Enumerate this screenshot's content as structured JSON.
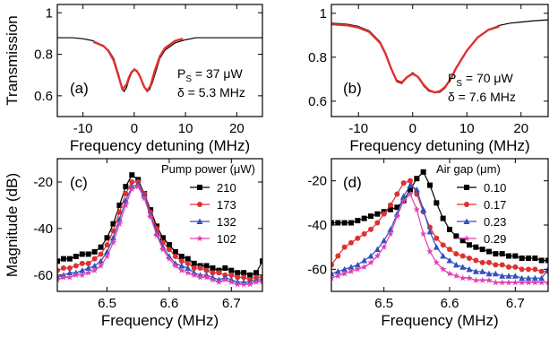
{
  "chart_data": [
    {
      "panel": "(a)",
      "type": "line",
      "xlabel": "Frequency detuning (MHz)",
      "ylabel": "Transmission",
      "xlim": [
        -15,
        25
      ],
      "ylim": [
        0.5,
        1.04
      ],
      "xticks": [
        -10,
        0,
        10,
        20
      ],
      "yticks": [
        0.6,
        0.8,
        1.0
      ],
      "grid": false,
      "annotations": [
        "P",
        "S",
        " = 37 μW",
        "δ = 5.3 MHz"
      ],
      "series": [
        {
          "name": "",
          "role": "measured",
          "color": "#000000",
          "x": [
            -15,
            -12,
            -10,
            -8,
            -6,
            -5,
            -4,
            -3,
            -2.5,
            -2,
            -1.5,
            -1,
            -0.5,
            0,
            0.5,
            1,
            1.5,
            2,
            2.5,
            3,
            3.5,
            4,
            5,
            6,
            8,
            10,
            12,
            15,
            18,
            20,
            22,
            25
          ],
          "y": [
            0.88,
            0.88,
            0.875,
            0.865,
            0.84,
            0.82,
            0.78,
            0.7,
            0.65,
            0.62,
            0.64,
            0.68,
            0.71,
            0.73,
            0.72,
            0.7,
            0.67,
            0.64,
            0.62,
            0.63,
            0.66,
            0.7,
            0.78,
            0.82,
            0.855,
            0.87,
            0.88,
            0.88,
            0.88,
            0.88,
            0.88,
            0.88
          ]
        },
        {
          "name": "",
          "role": "fit",
          "color": "#e03030",
          "x": [
            -8,
            -6,
            -5,
            -4,
            -3,
            -2.3,
            -1.5,
            -1,
            -0.5,
            0,
            0.5,
            1,
            1.5,
            2,
            2.6,
            3.2,
            4,
            5,
            6,
            8,
            9.5
          ],
          "y": [
            0.86,
            0.84,
            0.815,
            0.77,
            0.69,
            0.63,
            0.655,
            0.69,
            0.715,
            0.725,
            0.72,
            0.7,
            0.67,
            0.64,
            0.625,
            0.65,
            0.72,
            0.79,
            0.83,
            0.865,
            0.875
          ]
        }
      ]
    },
    {
      "panel": "(b)",
      "type": "line",
      "xlabel": "Frequency detuning (MHz)",
      "ylabel": "",
      "xlim": [
        -15,
        25
      ],
      "ylim": [
        0.53,
        1.04
      ],
      "xticks": [
        -10,
        0,
        10,
        20
      ],
      "yticks": [
        0.6,
        0.8,
        1.0
      ],
      "grid": false,
      "annotations": [
        "P",
        "S",
        " = 70 μW",
        "δ = 7.6 MHz"
      ],
      "series": [
        {
          "name": "",
          "role": "measured",
          "color": "#000000",
          "x": [
            -15,
            -12,
            -10,
            -8,
            -6,
            -5,
            -4,
            -3,
            -2,
            -1,
            0,
            1,
            2,
            3,
            4,
            5,
            6,
            7,
            8,
            10,
            12,
            14,
            16,
            18,
            20,
            22,
            25
          ],
          "y": [
            0.955,
            0.95,
            0.94,
            0.92,
            0.87,
            0.82,
            0.75,
            0.69,
            0.68,
            0.71,
            0.73,
            0.71,
            0.67,
            0.645,
            0.64,
            0.64,
            0.66,
            0.7,
            0.75,
            0.83,
            0.89,
            0.925,
            0.945,
            0.955,
            0.96,
            0.965,
            0.97
          ]
        },
        {
          "name": "",
          "role": "fit",
          "color": "#e03030",
          "x": [
            -15,
            -12,
            -10,
            -8,
            -6,
            -5,
            -4,
            -3,
            -2,
            -1,
            0,
            1,
            2,
            3,
            4,
            5,
            6,
            7,
            8,
            10,
            12,
            14,
            16
          ],
          "y": [
            0.95,
            0.945,
            0.935,
            0.915,
            0.865,
            0.815,
            0.75,
            0.695,
            0.685,
            0.71,
            0.725,
            0.71,
            0.675,
            0.65,
            0.64,
            0.645,
            0.665,
            0.7,
            0.75,
            0.83,
            0.89,
            0.925,
            0.94
          ]
        }
      ]
    },
    {
      "panel": "(c)",
      "type": "line",
      "xlabel": "Frequency (MHz)",
      "ylabel": "Magnitude (dB)",
      "xlim": [
        6.42,
        6.75
      ],
      "ylim": [
        -67,
        -10
      ],
      "xticks": [
        6.5,
        6.6,
        6.7
      ],
      "yticks": [
        -60,
        -40,
        -20
      ],
      "grid": false,
      "legend_title": "Pump power (μW)",
      "legend_position": "top-right",
      "x": [
        6.42,
        6.43,
        6.44,
        6.45,
        6.46,
        6.47,
        6.48,
        6.49,
        6.5,
        6.51,
        6.52,
        6.53,
        6.54,
        6.55,
        6.56,
        6.57,
        6.58,
        6.59,
        6.6,
        6.61,
        6.62,
        6.63,
        6.64,
        6.65,
        6.66,
        6.67,
        6.68,
        6.69,
        6.7,
        6.71,
        6.72,
        6.73,
        6.74,
        6.75
      ],
      "series": [
        {
          "name": "210",
          "color": "#000000",
          "marker": "square",
          "values": [
            -54,
            -53,
            -53,
            -52,
            -51,
            -51,
            -50,
            -48,
            -44,
            -38,
            -30,
            -22,
            -17,
            -19,
            -25,
            -32,
            -39,
            -44,
            -47,
            -50,
            -52,
            -53,
            -55,
            -56,
            -56,
            -57,
            -58,
            -57,
            -58,
            -59,
            -59,
            -60,
            -59,
            -54
          ]
        },
        {
          "name": "173",
          "color": "#e03030",
          "marker": "circle",
          "values": [
            -58,
            -57,
            -57,
            -56,
            -55,
            -55,
            -53,
            -51,
            -47,
            -41,
            -33,
            -25,
            -20,
            -20,
            -25,
            -33,
            -40,
            -46,
            -49,
            -52,
            -54,
            -55,
            -57,
            -57,
            -58,
            -59,
            -59,
            -60,
            -60,
            -61,
            -61,
            -62,
            -61,
            -61
          ]
        },
        {
          "name": "132",
          "color": "#3050c0",
          "marker": "triangle",
          "values": [
            -61,
            -60,
            -59,
            -59,
            -58,
            -57,
            -56,
            -54,
            -50,
            -44,
            -36,
            -28,
            -22,
            -21,
            -26,
            -34,
            -42,
            -48,
            -52,
            -55,
            -56,
            -57,
            -59,
            -60,
            -60,
            -61,
            -62,
            -61,
            -62,
            -63,
            -63,
            -63,
            -62,
            -62
          ]
        },
        {
          "name": "102",
          "color": "#e040b0",
          "marker": "star",
          "values": [
            -62,
            -61,
            -61,
            -60,
            -60,
            -59,
            -58,
            -56,
            -52,
            -46,
            -38,
            -30,
            -23,
            -22,
            -27,
            -35,
            -43,
            -49,
            -53,
            -56,
            -58,
            -59,
            -60,
            -61,
            -61,
            -62,
            -63,
            -62,
            -63,
            -64,
            -64,
            -64,
            -63,
            -63
          ]
        }
      ]
    },
    {
      "panel": "(d)",
      "type": "line",
      "xlabel": "Frequency (MHz)",
      "ylabel": "",
      "xlim": [
        6.42,
        6.75
      ],
      "ylim": [
        -70,
        -10
      ],
      "xticks": [
        6.5,
        6.6,
        6.7
      ],
      "yticks": [
        -60,
        -40,
        -20
      ],
      "grid": false,
      "legend_title": "Air gap (μm)",
      "legend_position": "top-right",
      "x": [
        6.42,
        6.43,
        6.44,
        6.45,
        6.46,
        6.47,
        6.48,
        6.49,
        6.5,
        6.51,
        6.52,
        6.53,
        6.54,
        6.55,
        6.56,
        6.57,
        6.58,
        6.59,
        6.6,
        6.61,
        6.62,
        6.63,
        6.64,
        6.65,
        6.66,
        6.67,
        6.68,
        6.69,
        6.7,
        6.71,
        6.72,
        6.73,
        6.74,
        6.75
      ],
      "series": [
        {
          "name": "0.10",
          "color": "#000000",
          "marker": "square",
          "values": [
            -39,
            -39,
            -39,
            -39,
            -38,
            -37,
            -36,
            -35,
            -34,
            -33,
            -32,
            -29,
            -24,
            -19,
            -16,
            -22,
            -30,
            -37,
            -42,
            -45,
            -47,
            -49,
            -50,
            -51,
            -52,
            -53,
            -53,
            -54,
            -54,
            -55,
            -55,
            -55,
            -56,
            -56
          ]
        },
        {
          "name": "0.17",
          "color": "#e03030",
          "marker": "circle",
          "values": [
            -58,
            -54,
            -50,
            -48,
            -46,
            -44,
            -42,
            -39,
            -35,
            -31,
            -26,
            -21,
            -20,
            -26,
            -34,
            -41,
            -46,
            -49,
            -51,
            -53,
            -54,
            -55,
            -56,
            -57,
            -57,
            -58,
            -58,
            -59,
            -59,
            -60,
            -60,
            -60,
            -61,
            -61
          ]
        },
        {
          "name": "0.23",
          "color": "#3050c0",
          "marker": "triangle",
          "values": [
            -62,
            -61,
            -60,
            -59,
            -58,
            -56,
            -54,
            -51,
            -47,
            -42,
            -35,
            -27,
            -22,
            -24,
            -33,
            -43,
            -50,
            -54,
            -56,
            -58,
            -59,
            -60,
            -61,
            -61,
            -62,
            -62,
            -63,
            -63,
            -63,
            -64,
            -64,
            -64,
            -64,
            -60
          ]
        },
        {
          "name": "0.29",
          "color": "#e040b0",
          "marker": "star",
          "values": [
            -64,
            -63,
            -62,
            -61,
            -60,
            -59,
            -57,
            -54,
            -50,
            -44,
            -36,
            -29,
            -26,
            -33,
            -44,
            -52,
            -57,
            -60,
            -62,
            -63,
            -64,
            -64,
            -65,
            -65,
            -65,
            -66,
            -66,
            -66,
            -66,
            -66,
            -66,
            -66,
            -66,
            -66
          ]
        }
      ]
    }
  ]
}
